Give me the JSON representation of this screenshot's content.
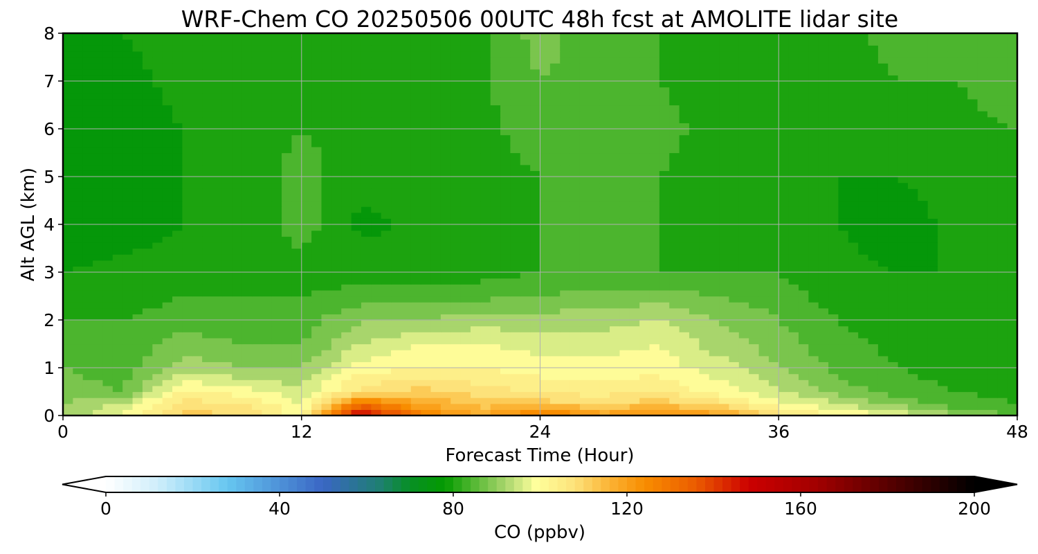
{
  "chart_data": {
    "type": "heatmap",
    "title": "WRF-Chem CO  20250506 00UTC 48h fcst at AMOLITE lidar site",
    "xlabel": "Forecast Time (Hour)",
    "ylabel": "Alt AGL (km)",
    "xlim": [
      0,
      48
    ],
    "ylim": [
      0,
      8
    ],
    "x_ticks": [
      "0",
      "12",
      "24",
      "36",
      "48"
    ],
    "y_ticks": [
      "0",
      "1",
      "2",
      "3",
      "4",
      "5",
      "6",
      "7",
      "8"
    ],
    "grid": true,
    "colorbar": {
      "label": "CO  (ppbv)",
      "range": [
        0,
        200
      ],
      "extend": "both",
      "ticks": [
        "0",
        "40",
        "80",
        "120",
        "160",
        "200"
      ]
    },
    "hours": [
      0,
      3,
      6,
      9,
      12,
      15,
      18,
      21,
      24,
      27,
      30,
      33,
      36,
      39,
      42,
      45,
      48
    ],
    "altitudes_km": [
      0,
      0.25,
      0.5,
      1,
      1.5,
      2,
      2.5,
      3,
      4,
      5,
      6,
      7,
      8
    ],
    "values_ppbv": [
      [
        90,
        100,
        112,
        110,
        100,
        152,
        128,
        118,
        130,
        120,
        125,
        120,
        108,
        102,
        98,
        90,
        86
      ],
      [
        90,
        94,
        108,
        106,
        98,
        130,
        118,
        112,
        112,
        110,
        112,
        108,
        100,
        94,
        88,
        84,
        82
      ],
      [
        88,
        86,
        103,
        100,
        95,
        108,
        112,
        108,
        105,
        104,
        106,
        100,
        94,
        88,
        84,
        82,
        80
      ],
      [
        86,
        84,
        92,
        90,
        90,
        100,
        102,
        102,
        100,
        100,
        100,
        96,
        90,
        85,
        82,
        80,
        80
      ],
      [
        84,
        83,
        88,
        86,
        86,
        94,
        98,
        98,
        96,
        96,
        98,
        92,
        88,
        83,
        81,
        80,
        79
      ],
      [
        82,
        82,
        84,
        84,
        84,
        90,
        90,
        92,
        92,
        92,
        94,
        90,
        86,
        82,
        80,
        79,
        79
      ],
      [
        80,
        80,
        82,
        82,
        82,
        84,
        84,
        85,
        86,
        88,
        88,
        86,
        84,
        80,
        79,
        79,
        79
      ],
      [
        78,
        79,
        80,
        80,
        80,
        80,
        80,
        80,
        82,
        82,
        82,
        82,
        82,
        79,
        78,
        78,
        79
      ],
      [
        76,
        76,
        78,
        79,
        84,
        77,
        79,
        80,
        82,
        84,
        82,
        81,
        80,
        78,
        76,
        79,
        80
      ],
      [
        74,
        75,
        78,
        79,
        84,
        79,
        80,
        80,
        82,
        84,
        82,
        80,
        80,
        78,
        78,
        80,
        81
      ],
      [
        74,
        76,
        78,
        79,
        82,
        80,
        80,
        81,
        84,
        86,
        83,
        81,
        80,
        80,
        80,
        81,
        82
      ],
      [
        76,
        77,
        79,
        80,
        81,
        80,
        80,
        81,
        86,
        84,
        82,
        80,
        80,
        81,
        82,
        82,
        84
      ],
      [
        77,
        78,
        79,
        80,
        80,
        80,
        80,
        81,
        88,
        83,
        82,
        81,
        80,
        81,
        83,
        84,
        85
      ]
    ]
  }
}
